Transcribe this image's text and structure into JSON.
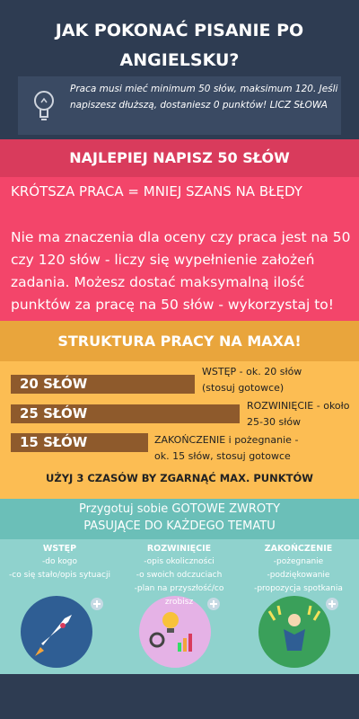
{
  "header": {
    "title": "JAK POKONAĆ PISANIE PO ANGIELSKU?",
    "note": "Praca musi mieć minimum 50 słów, maksimum 120. Jeśli napiszesz dłuższą, dostaniesz 0 punktów! LICZ SŁOWA"
  },
  "tip": {
    "heading": "NAJLEPIEJ NAPISZ 50 SŁÓW",
    "lead": "KRÓTSZA PRACA = MNIEJ SZANS NA BŁĘDY",
    "text": "Nie ma znaczenia dla oceny czy praca jest na 50 czy 120 słów - liczy się wypełnienie założeń zadania. Możesz dostać maksymalną ilość punktów za pracę na 50 słów - wykorzystaj to!"
  },
  "structure": {
    "heading": "STRUKTURA PRACY NA MAXA!",
    "parts": [
      {
        "label": "20 SŁÓW",
        "text": "WSTĘP - ok. 20 słów (stosuj gotowce)"
      },
      {
        "label": "25 SŁÓW",
        "text": "ROZWINIĘCIE - około 25-30 słów"
      },
      {
        "label": "15 SŁÓW",
        "text": "ZAKOŃCZENIE i pożegnanie - ok. 15 słów, stosuj gotowce"
      }
    ],
    "footer": "UŻYJ 3 CZASÓW BY ZGARNĄĆ MAX. PUNKTÓW"
  },
  "phrases": {
    "heading": "Przygotuj sobie GOTOWE ZWROTY PASUJĄCE DO KAŻDEGO TEMATU",
    "columns": [
      {
        "title": "WSTĘP",
        "items": [
          "-do kogo",
          "-co się stało/opis sytuacji"
        ]
      },
      {
        "title": "ROZWINIĘCIE",
        "items": [
          "-opis okoliczności",
          "-o swoich odczuciach",
          "-plan na przyszłość/co zrobisz"
        ]
      },
      {
        "title": "ZAKOŃCZENIE",
        "items": [
          "-pożegnanie",
          "-podziękowanie",
          "-propozycja spotkania"
        ]
      }
    ]
  }
}
